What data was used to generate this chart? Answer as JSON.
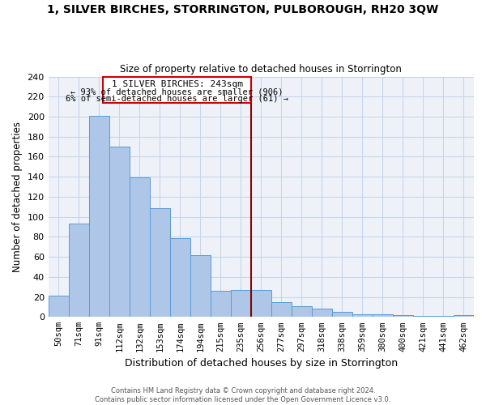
{
  "title": "1, SILVER BIRCHES, STORRINGTON, PULBOROUGH, RH20 3QW",
  "subtitle": "Size of property relative to detached houses in Storrington",
  "xlabel": "Distribution of detached houses by size in Storrington",
  "ylabel": "Number of detached properties",
  "bar_labels": [
    "50sqm",
    "71sqm",
    "91sqm",
    "112sqm",
    "132sqm",
    "153sqm",
    "174sqm",
    "194sqm",
    "215sqm",
    "235sqm",
    "256sqm",
    "277sqm",
    "297sqm",
    "318sqm",
    "338sqm",
    "359sqm",
    "380sqm",
    "400sqm",
    "421sqm",
    "441sqm",
    "462sqm"
  ],
  "bar_values": [
    21,
    93,
    201,
    170,
    139,
    109,
    79,
    62,
    26,
    27,
    27,
    15,
    11,
    8,
    5,
    3,
    3,
    2,
    1,
    1,
    2
  ],
  "bar_color": "#aec6e8",
  "bar_edge_color": "#5b9bd5",
  "ylim": [
    0,
    240
  ],
  "yticks": [
    0,
    20,
    40,
    60,
    80,
    100,
    120,
    140,
    160,
    180,
    200,
    220,
    240
  ],
  "property_line_x": 10,
  "property_line_color": "#8b0000",
  "annotation_title": "1 SILVER BIRCHES: 243sqm",
  "annotation_line1": "← 93% of detached houses are smaller (906)",
  "annotation_line2": "6% of semi-detached houses are larger (61) →",
  "annotation_box_color": "#ffffff",
  "annotation_box_edge": "#cc0000",
  "footer1": "Contains HM Land Registry data © Crown copyright and database right 2024.",
  "footer2": "Contains public sector information licensed under the Open Government Licence v3.0.",
  "background_color": "#ffffff",
  "grid_color": "#c8d4e8"
}
